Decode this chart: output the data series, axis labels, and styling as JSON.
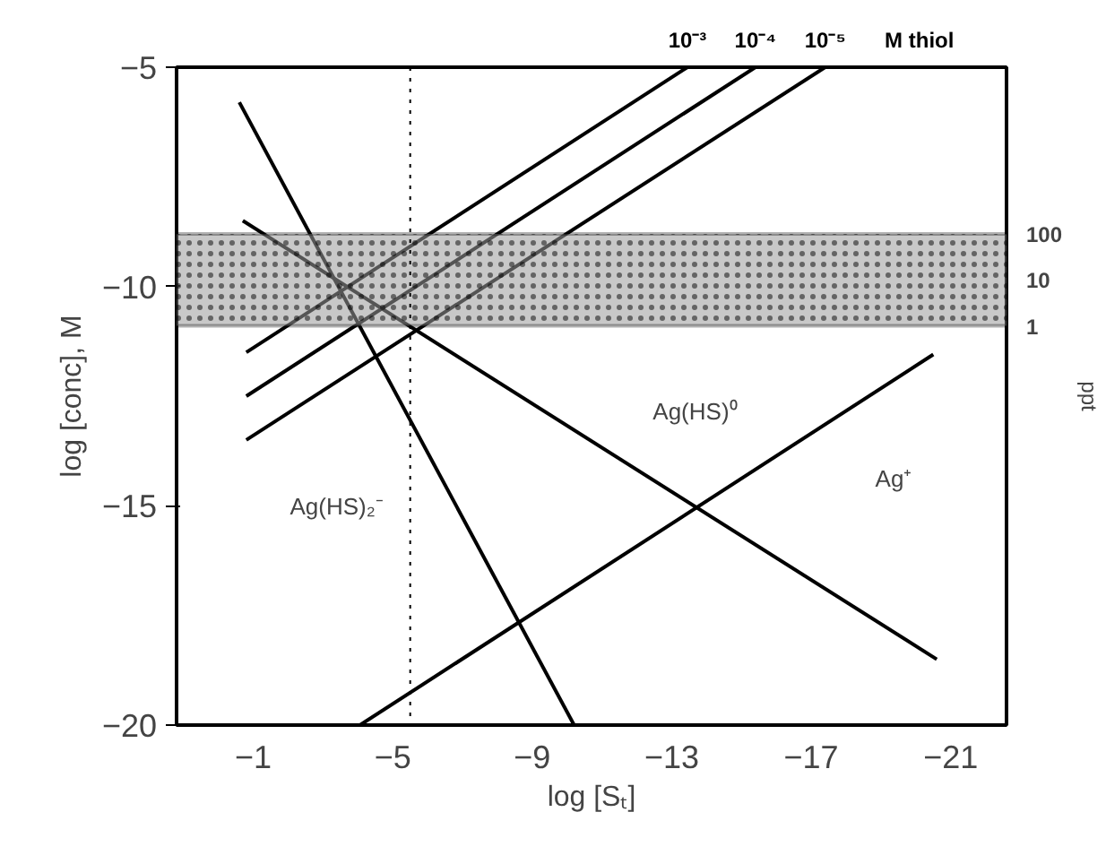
{
  "chart_data": {
    "type": "line",
    "xlabel": "log [Sₜ]",
    "ylabel": "log [conc], M",
    "y2label": "ppt",
    "xlim": [
      1.2,
      -22.6
    ],
    "xticks": [
      -1,
      -5,
      -9,
      -13,
      -17,
      -21
    ],
    "ylim": [
      -20,
      -5
    ],
    "yticks": [
      -20,
      -15,
      -10,
      -5
    ],
    "y2lim": [
      2.1e-09,
      420000.0
    ],
    "y2ticks": [
      1,
      10,
      100
    ],
    "log": "y2",
    "grid": false,
    "legend": false,
    "marker": "none",
    "line_style": "solid",
    "series": [
      {
        "name": "10⁻³",
        "color": "#000000",
        "x": [
          -0.8,
          -13.45
        ],
        "values": [
          -11.5,
          -5
        ]
      },
      {
        "name": "10⁻⁴",
        "color": "#000000",
        "x": [
          -0.8,
          -15.4
        ],
        "values": [
          -12.5,
          -5
        ]
      },
      {
        "name": "10⁻⁵",
        "color": "#000000",
        "x": [
          -0.8,
          -17.4
        ],
        "values": [
          -13.5,
          -5
        ]
      },
      {
        "name": "Ag⁺",
        "color": "#000000",
        "x": [
          -4.06,
          -20.5
        ],
        "values": [
          -20,
          -11.55
        ]
      },
      {
        "name": "Ag(HS)⁰",
        "color": "#000000",
        "x": [
          -0.7,
          -20.6
        ],
        "values": [
          -8.5,
          -18.5
        ]
      },
      {
        "name": "Ag(HS)₂⁻",
        "color": "#000000",
        "x": [
          -0.6,
          -10.2
        ],
        "values": [
          -5.8,
          -20
        ]
      }
    ],
    "bands": [
      {
        "axis": "y2",
        "from": 1,
        "to": 100,
        "color": "#9a9a9a"
      }
    ],
    "ref_lines": [
      {
        "axis": "x",
        "value": -5.5,
        "color": "#000000",
        "line_style": "dotted"
      }
    ],
    "annotations": [
      "M thiol"
    ]
  }
}
